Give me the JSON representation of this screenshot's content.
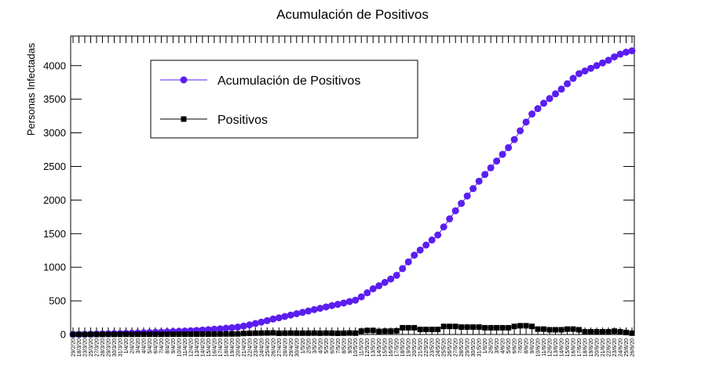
{
  "chart_data": {
    "type": "line",
    "title": "Acumulación de Positivos",
    "ylabel": "Personas Infectadas",
    "categories": [
      "29/2/20",
      "18/3/20",
      "23/3/20",
      "25/3/20",
      "27/3/20",
      "28/3/20",
      "29/3/20",
      "30/3/20",
      "31/3/20",
      "1/4/20",
      "2/4/20",
      "3/4/20",
      "4/4/20",
      "5/4/20",
      "6/4/20",
      "7/4/20",
      "8/4/20",
      "9/4/20",
      "10/4/20",
      "11/4/20",
      "12/4/20",
      "13/4/20",
      "14/4/20",
      "15/4/20",
      "16/4/20",
      "17/4/20",
      "18/4/20",
      "19/4/20",
      "20/4/20",
      "21/4/20",
      "22/4/20",
      "23/4/20",
      "24/4/20",
      "25/4/20",
      "26/4/20",
      "27/4/20",
      "28/4/20",
      "29/4/20",
      "30/4/20",
      "1/5/20",
      "2/5/20",
      "3/5/20",
      "4/5/20",
      "5/5/20",
      "6/5/20",
      "7/5/20",
      "8/5/20",
      "9/5/20",
      "10/5/20",
      "11/5/20",
      "12/5/20",
      "13/5/20",
      "14/5/20",
      "15/5/20",
      "16/5/20",
      "17/5/20",
      "18/5/20",
      "19/5/20",
      "20/5/20",
      "21/5/20",
      "22/5/20",
      "23/5/20",
      "24/5/20",
      "25/5/20",
      "26/5/20",
      "27/5/20",
      "28/5/20",
      "29/5/20",
      "30/5/20",
      "31/5/20",
      "1/6/20",
      "2/6/20",
      "3/6/20",
      "4/6/20",
      "5/6/20",
      "6/6/20",
      "7/6/20",
      "8/6/20",
      "9/6/20",
      "10/6/20",
      "11/6/20",
      "12/6/20",
      "13/6/20",
      "14/6/20",
      "15/6/20",
      "16/6/20",
      "17/6/20",
      "18/6/20",
      "19/6/20",
      "20/6/20",
      "21/6/20",
      "22/6/20",
      "23/6/20",
      "24/6/20",
      "25/6/20",
      "26/6/20"
    ],
    "series": [
      {
        "name": "Acumulación de Positivos",
        "color": "#5a1ef0",
        "marker": "circle",
        "values": [
          1,
          2,
          3,
          5,
          7,
          9,
          11,
          13,
          15,
          18,
          20,
          23,
          26,
          29,
          32,
          35,
          39,
          43,
          47,
          51,
          55,
          60,
          66,
          72,
          78,
          85,
          93,
          101,
          110,
          125,
          143,
          163,
          184,
          206,
          230,
          248,
          268,
          289,
          309,
          329,
          349,
          370,
          389,
          410,
          430,
          448,
          468,
          490,
          510,
          560,
          620,
          680,
          725,
          775,
          825,
          880,
          980,
          1080,
          1180,
          1255,
          1330,
          1405,
          1480,
          1600,
          1720,
          1840,
          1950,
          2060,
          2170,
          2280,
          2380,
          2480,
          2580,
          2680,
          2780,
          2900,
          3030,
          3160,
          3280,
          3360,
          3440,
          3510,
          3580,
          3650,
          3730,
          3810,
          3880,
          3920,
          3960,
          4000,
          4040,
          4080,
          4130,
          4170,
          4200,
          4220
        ]
      },
      {
        "name": "Positivos",
        "color": "#000000",
        "marker": "square",
        "values": [
          1,
          1,
          1,
          2,
          2,
          2,
          2,
          2,
          2,
          3,
          2,
          3,
          3,
          3,
          3,
          3,
          4,
          4,
          4,
          4,
          4,
          5,
          6,
          6,
          6,
          7,
          8,
          8,
          9,
          15,
          18,
          20,
          21,
          22,
          24,
          18,
          20,
          21,
          20,
          20,
          20,
          21,
          19,
          21,
          20,
          18,
          20,
          22,
          20,
          50,
          60,
          60,
          45,
          50,
          50,
          55,
          100,
          100,
          100,
          75,
          75,
          75,
          75,
          120,
          120,
          120,
          110,
          110,
          110,
          110,
          100,
          100,
          100,
          100,
          100,
          120,
          130,
          130,
          120,
          80,
          80,
          70,
          70,
          70,
          80,
          80,
          70,
          40,
          40,
          40,
          40,
          40,
          50,
          40,
          30,
          20
        ]
      }
    ],
    "ylim": [
      0,
      4440
    ],
    "yticks": [
      0,
      500,
      1000,
      1500,
      2000,
      2500,
      3000,
      3500,
      4000
    ]
  }
}
